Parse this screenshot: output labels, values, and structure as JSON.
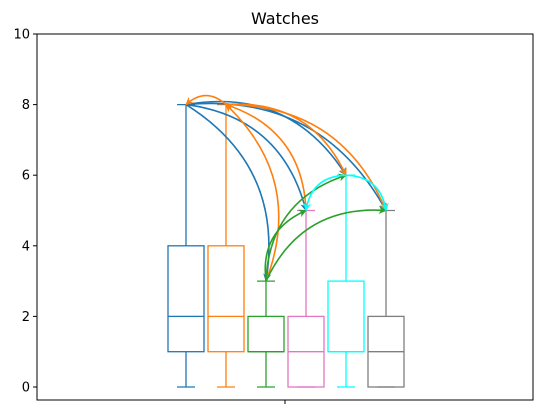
{
  "chart_data": {
    "type": "box",
    "title": "Watches",
    "xlabel": "",
    "ylabel": "",
    "ylim": [
      0,
      10
    ],
    "y_ticks": [
      0,
      2,
      4,
      6,
      8,
      10
    ],
    "x_ticks": [
      ""
    ],
    "grid": false,
    "boxes": [
      {
        "color": "#1f77b4",
        "min": 0,
        "q1": 1,
        "median": 2,
        "q3": 4,
        "max": 8
      },
      {
        "color": "#ff7f0e",
        "min": 0,
        "q1": 1,
        "median": 2,
        "q3": 4,
        "max": 8
      },
      {
        "color": "#2ca02c",
        "min": 0,
        "q1": 1,
        "median": 1,
        "q3": 2,
        "max": 3
      },
      {
        "color": "#e377c2",
        "min": 0,
        "q1": 0,
        "median": 1,
        "q3": 2,
        "max": 5
      },
      {
        "color": "#00ffff",
        "min": 0,
        "q1": 1,
        "median": 1,
        "q3": 3,
        "max": 6
      },
      {
        "color": "#7f7f7f",
        "min": 0,
        "q1": 0,
        "median": 1,
        "q3": 2,
        "max": 5
      }
    ],
    "arrows": [
      {
        "color": "#1f77b4",
        "from_box": 0,
        "to_box": 2,
        "from_y": 8,
        "to_y": 3
      },
      {
        "color": "#1f77b4",
        "from_box": 0,
        "to_box": 3,
        "from_y": 8,
        "to_y": 5
      },
      {
        "color": "#1f77b4",
        "from_box": 0,
        "to_box": 4,
        "from_y": 8,
        "to_y": 6
      },
      {
        "color": "#1f77b4",
        "from_box": 0,
        "to_box": 5,
        "from_y": 8,
        "to_y": 5
      },
      {
        "color": "#ff7f0e",
        "from_box": 1,
        "to_box": 0,
        "from_y": 8,
        "to_y": 8
      },
      {
        "color": "#ff7f0e",
        "from_box": 2,
        "to_box": 1,
        "from_y": 3,
        "to_y": 8
      },
      {
        "color": "#ff7f0e",
        "from_box": 3,
        "to_box": 1,
        "from_y": 5,
        "to_y": 8
      },
      {
        "color": "#ff7f0e",
        "from_box": 1,
        "to_box": 4,
        "from_y": 8,
        "to_y": 6
      },
      {
        "color": "#ff7f0e",
        "from_box": 1,
        "to_box": 5,
        "from_y": 8,
        "to_y": 5
      },
      {
        "color": "#2ca02c",
        "from_box": 2,
        "to_box": 3,
        "from_y": 3,
        "to_y": 5
      },
      {
        "color": "#2ca02c",
        "from_box": 2,
        "to_box": 4,
        "from_y": 3,
        "to_y": 6
      },
      {
        "color": "#2ca02c",
        "from_box": 2,
        "to_box": 5,
        "from_y": 3,
        "to_y": 5
      },
      {
        "color": "#00ffff",
        "from_box": 4,
        "to_box": 3,
        "from_y": 6,
        "to_y": 5
      },
      {
        "color": "#00ffff",
        "from_box": 4,
        "to_box": 5,
        "from_y": 6,
        "to_y": 5
      }
    ]
  }
}
